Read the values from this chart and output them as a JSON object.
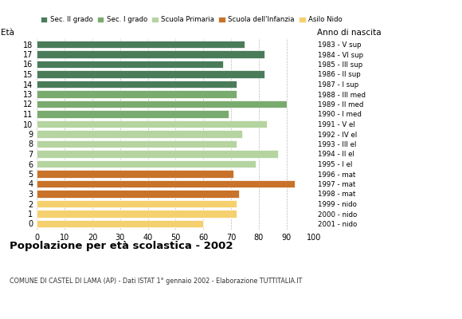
{
  "ages": [
    18,
    17,
    16,
    15,
    14,
    13,
    12,
    11,
    10,
    9,
    8,
    7,
    6,
    5,
    4,
    3,
    2,
    1,
    0
  ],
  "values": [
    75,
    82,
    67,
    82,
    72,
    72,
    90,
    69,
    83,
    74,
    72,
    87,
    79,
    71,
    93,
    73,
    72,
    72,
    60
  ],
  "anno_nascita": [
    "1983 - V sup",
    "1984 - VI sup",
    "1985 - III sup",
    "1986 - II sup",
    "1987 - I sup",
    "1988 - III med",
    "1989 - II med",
    "1990 - I med",
    "1991 - V el",
    "1992 - IV el",
    "1993 - III el",
    "1994 - II el",
    "1995 - I el",
    "1996 - mat",
    "1997 - mat",
    "1998 - mat",
    "1999 - nido",
    "2000 - nido",
    "2001 - nido"
  ],
  "colors": [
    "#4a7c59",
    "#4a7c59",
    "#4a7c59",
    "#4a7c59",
    "#4a7c59",
    "#7aab6e",
    "#7aab6e",
    "#7aab6e",
    "#b5d4a0",
    "#b5d4a0",
    "#b5d4a0",
    "#b5d4a0",
    "#b5d4a0",
    "#c8722a",
    "#c8722a",
    "#c8722a",
    "#f5d06e",
    "#f5d06e",
    "#f5d06e"
  ],
  "legend_labels": [
    "Sec. II grado",
    "Sec. I grado",
    "Scuola Primaria",
    "Scuola dell'Infanzia",
    "Asilo Nido"
  ],
  "legend_colors": [
    "#4a7c59",
    "#7aab6e",
    "#b5d4a0",
    "#c8722a",
    "#f5d06e"
  ],
  "title": "Popolazione per età scolastica - 2002",
  "subtitle": "COMUNE DI CASTEL DI LAMA (AP) - Dati ISTAT 1° gennaio 2002 - Elaborazione TUTTITALIA.IT",
  "label_left": "Età",
  "label_right": "Anno di nascita",
  "xlim": [
    0,
    100
  ],
  "xticks": [
    0,
    10,
    20,
    30,
    40,
    50,
    60,
    70,
    80,
    90,
    100
  ],
  "grid_color": "#bbbbbb",
  "bar_height": 0.78,
  "background_color": "#ffffff"
}
